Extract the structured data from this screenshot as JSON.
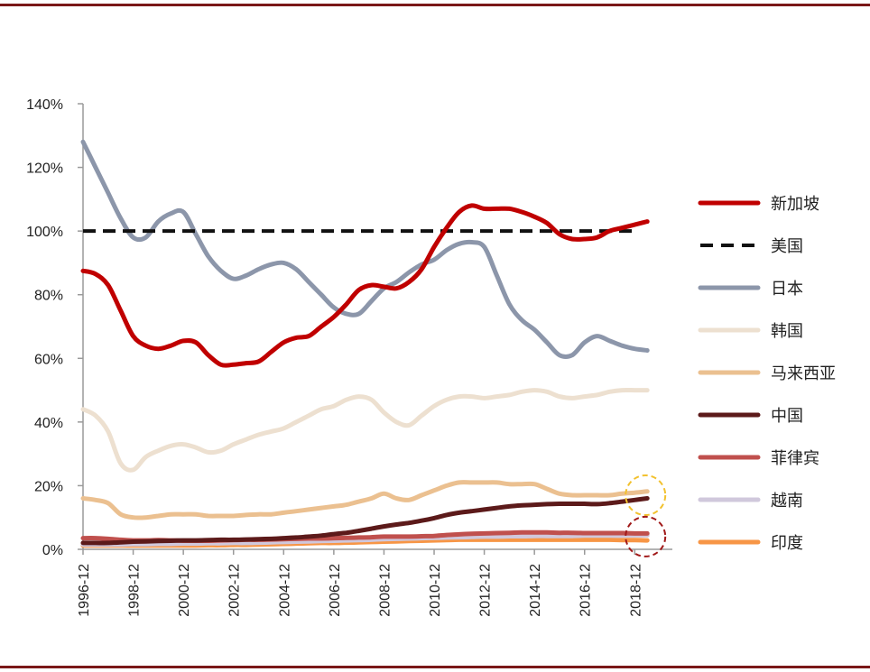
{
  "chart_data": {
    "type": "line",
    "title": "",
    "xlabel": "",
    "ylabel": "",
    "ylim": [
      0,
      140
    ],
    "yticks": [
      "0%",
      "20%",
      "40%",
      "60%",
      "80%",
      "100%",
      "120%",
      "140%"
    ],
    "x": [
      1996,
      1996.5,
      1997,
      1997.5,
      1998,
      1998.5,
      1999,
      1999.5,
      2000,
      2000.5,
      2001,
      2001.5,
      2002,
      2002.5,
      2003,
      2003.5,
      2004,
      2004.5,
      2005,
      2005.5,
      2006,
      2006.5,
      2007,
      2007.5,
      2008,
      2008.5,
      2009,
      2009.5,
      2010,
      2010.5,
      2011,
      2011.5,
      2012,
      2012.5,
      2013,
      2013.5,
      2014,
      2014.5,
      2015,
      2015.5,
      2016,
      2016.5,
      2017,
      2017.5,
      2018,
      2018.5
    ],
    "xticks": [
      "1996-12",
      "1998-12",
      "2000-12",
      "2002-12",
      "2004-12",
      "2006-12",
      "2008-12",
      "2010-12",
      "2012-12",
      "2014-12",
      "2016-12",
      "2018-12"
    ],
    "series": [
      {
        "name": "新加坡",
        "color": "#c00000",
        "dash": false,
        "values": [
          87.5,
          86.5,
          83,
          75,
          67,
          64,
          63,
          64,
          65.5,
          65,
          61,
          58,
          58,
          58.5,
          59,
          62,
          65,
          66.5,
          67,
          70,
          73,
          77,
          81.5,
          83,
          82.5,
          82,
          84,
          88,
          95,
          101,
          106,
          108,
          107,
          107,
          107,
          106,
          104.5,
          102.5,
          99,
          97.5,
          97.5,
          98,
          100,
          101,
          102,
          103
        ]
      },
      {
        "name": "美国",
        "color": "#111111",
        "dash": true,
        "values": [
          100,
          100,
          100,
          100,
          100,
          100,
          100,
          100,
          100,
          100,
          100,
          100,
          100,
          100,
          100,
          100,
          100,
          100,
          100,
          100,
          100,
          100,
          100,
          100,
          100,
          100,
          100,
          100,
          100,
          100,
          100,
          100,
          100,
          100,
          100,
          100,
          100,
          100,
          100,
          100,
          100,
          100,
          100,
          100,
          100,
          100
        ]
      },
      {
        "name": "日本",
        "color": "#8c96aa",
        "dash": false,
        "values": [
          128,
          120,
          112,
          104,
          98,
          98,
          103,
          105.5,
          106,
          99,
          92,
          87.5,
          85,
          86,
          88,
          89.5,
          90,
          88,
          84,
          80,
          76,
          74,
          74,
          78,
          82,
          84,
          87,
          89.5,
          91,
          94,
          96,
          96.5,
          95,
          86,
          77,
          72,
          69,
          65,
          61,
          61,
          65,
          67,
          65.5,
          64,
          63,
          62.5
        ]
      },
      {
        "name": "韩国",
        "color": "#ede0d0",
        "dash": false,
        "values": [
          44,
          42,
          37,
          27,
          25,
          29,
          31,
          32.5,
          33,
          32,
          30.5,
          31,
          33,
          34.5,
          36,
          37,
          38,
          40,
          42,
          44,
          45,
          47,
          48,
          47,
          43,
          40,
          39,
          42,
          45,
          47,
          48,
          48,
          47.5,
          48,
          48.5,
          49.5,
          50,
          49.5,
          48,
          47.5,
          48,
          48.5,
          49.5,
          50,
          50,
          50
        ]
      },
      {
        "name": "马来西亚",
        "color": "#ebc090",
        "dash": false,
        "values": [
          16,
          15.5,
          14.5,
          11,
          10,
          10,
          10.5,
          11,
          11,
          11,
          10.5,
          10.5,
          10.5,
          10.8,
          11,
          11,
          11.5,
          12,
          12.5,
          13,
          13.5,
          14,
          15,
          16,
          17.5,
          16,
          15.5,
          17,
          18.5,
          20,
          21,
          21,
          21,
          21,
          20.5,
          20.5,
          20.5,
          19,
          17.5,
          17,
          17,
          17,
          17,
          17.5,
          17.8,
          18.2
        ]
      },
      {
        "name": "中国",
        "color": "#5c1a1a",
        "dash": false,
        "values": [
          2,
          2,
          2,
          2.2,
          2.4,
          2.5,
          2.6,
          2.7,
          2.8,
          2.8,
          2.9,
          3,
          3,
          3.1,
          3.2,
          3.3,
          3.5,
          3.7,
          4,
          4.3,
          4.8,
          5.2,
          5.8,
          6.5,
          7.2,
          7.8,
          8.3,
          9,
          9.8,
          10.8,
          11.5,
          12,
          12.5,
          13,
          13.5,
          13.8,
          14,
          14.2,
          14.3,
          14.3,
          14.3,
          14.2,
          14.5,
          15,
          15.5,
          16
        ]
      },
      {
        "name": "菲律宾",
        "color": "#c0504d",
        "dash": false,
        "values": [
          3.5,
          3.5,
          3.3,
          3,
          2.8,
          2.8,
          2.9,
          2.8,
          2.7,
          2.7,
          2.7,
          2.8,
          2.9,
          3,
          3,
          3.1,
          3.2,
          3.3,
          3.4,
          3.4,
          3.5,
          3.6,
          3.7,
          3.8,
          4,
          4,
          4,
          4.1,
          4.2,
          4.5,
          4.7,
          4.9,
          5,
          5.1,
          5.2,
          5.3,
          5.3,
          5.3,
          5.2,
          5.2,
          5.1,
          5.1,
          5.1,
          5.1,
          5,
          5
        ]
      },
      {
        "name": "越南",
        "color": "#d0c8dc",
        "dash": false,
        "values": [
          1.5,
          1.5,
          1.5,
          1.5,
          1.6,
          1.6,
          1.7,
          1.7,
          1.8,
          1.8,
          1.9,
          1.9,
          2,
          2,
          2.1,
          2.2,
          2.3,
          2.4,
          2.5,
          2.6,
          2.7,
          2.8,
          2.9,
          3,
          3.2,
          3.3,
          3.4,
          3.5,
          3.6,
          3.7,
          3.8,
          3.9,
          4,
          4,
          4.1,
          4.1,
          4.2,
          4.2,
          4.2,
          4.2,
          4.3,
          4.3,
          4.3,
          4.3,
          4.4,
          4.4
        ]
      },
      {
        "name": "印度",
        "color": "#f79646",
        "dash": false,
        "values": [
          1.2,
          1.2,
          1.2,
          1.2,
          1.2,
          1.2,
          1.2,
          1.2,
          1.2,
          1.2,
          1.3,
          1.3,
          1.4,
          1.4,
          1.5,
          1.6,
          1.7,
          1.8,
          1.9,
          2,
          2,
          2.1,
          2.2,
          2.3,
          2.4,
          2.5,
          2.6,
          2.7,
          2.8,
          2.9,
          3,
          3,
          3,
          3,
          3,
          3,
          3,
          3,
          3,
          3,
          3,
          3,
          3,
          2.9,
          2.9,
          2.8
        ]
      }
    ],
    "annotations": [
      {
        "type": "dashed-circle",
        "color": "#f2c12e",
        "x": 2018.5,
        "y": 17
      },
      {
        "type": "dashed-circle",
        "color": "#a01818",
        "x": 2018.5,
        "y": 4
      }
    ],
    "legend_position": "right"
  }
}
